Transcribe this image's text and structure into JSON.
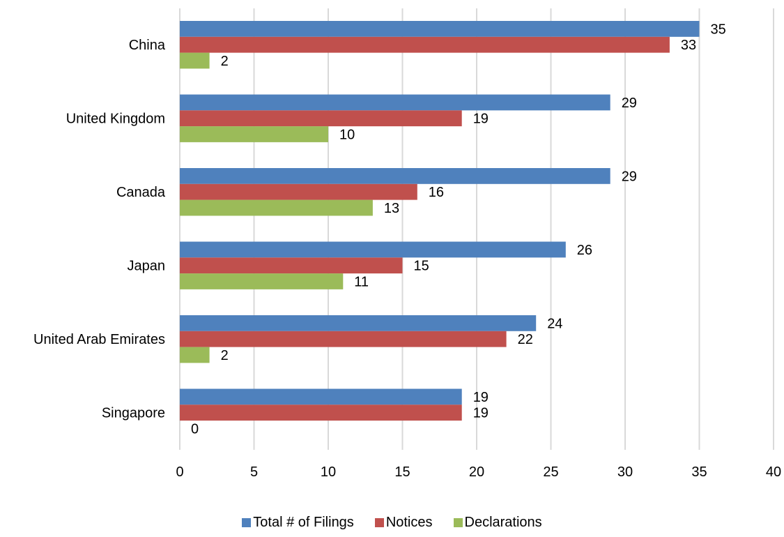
{
  "chart_data": {
    "type": "bar",
    "orientation": "horizontal",
    "categories": [
      "China",
      "United Kingdom",
      "Canada",
      "Japan",
      "United Arab Emirates",
      "Singapore"
    ],
    "series": [
      {
        "name": "Total # of Filings",
        "color": "#4F81BD",
        "values": [
          35,
          29,
          29,
          26,
          24,
          19
        ]
      },
      {
        "name": "Notices",
        "color": "#C0504D",
        "values": [
          33,
          19,
          16,
          15,
          22,
          19
        ]
      },
      {
        "name": "Declarations",
        "color": "#9BBB59",
        "values": [
          2,
          10,
          13,
          11,
          2,
          0
        ]
      }
    ],
    "xlim": [
      0,
      40
    ],
    "xticks": [
      "0",
      "5",
      "10",
      "15",
      "20",
      "25",
      "30",
      "35",
      "40"
    ],
    "grid": true,
    "legend_position": "bottom",
    "data_labels": true
  }
}
